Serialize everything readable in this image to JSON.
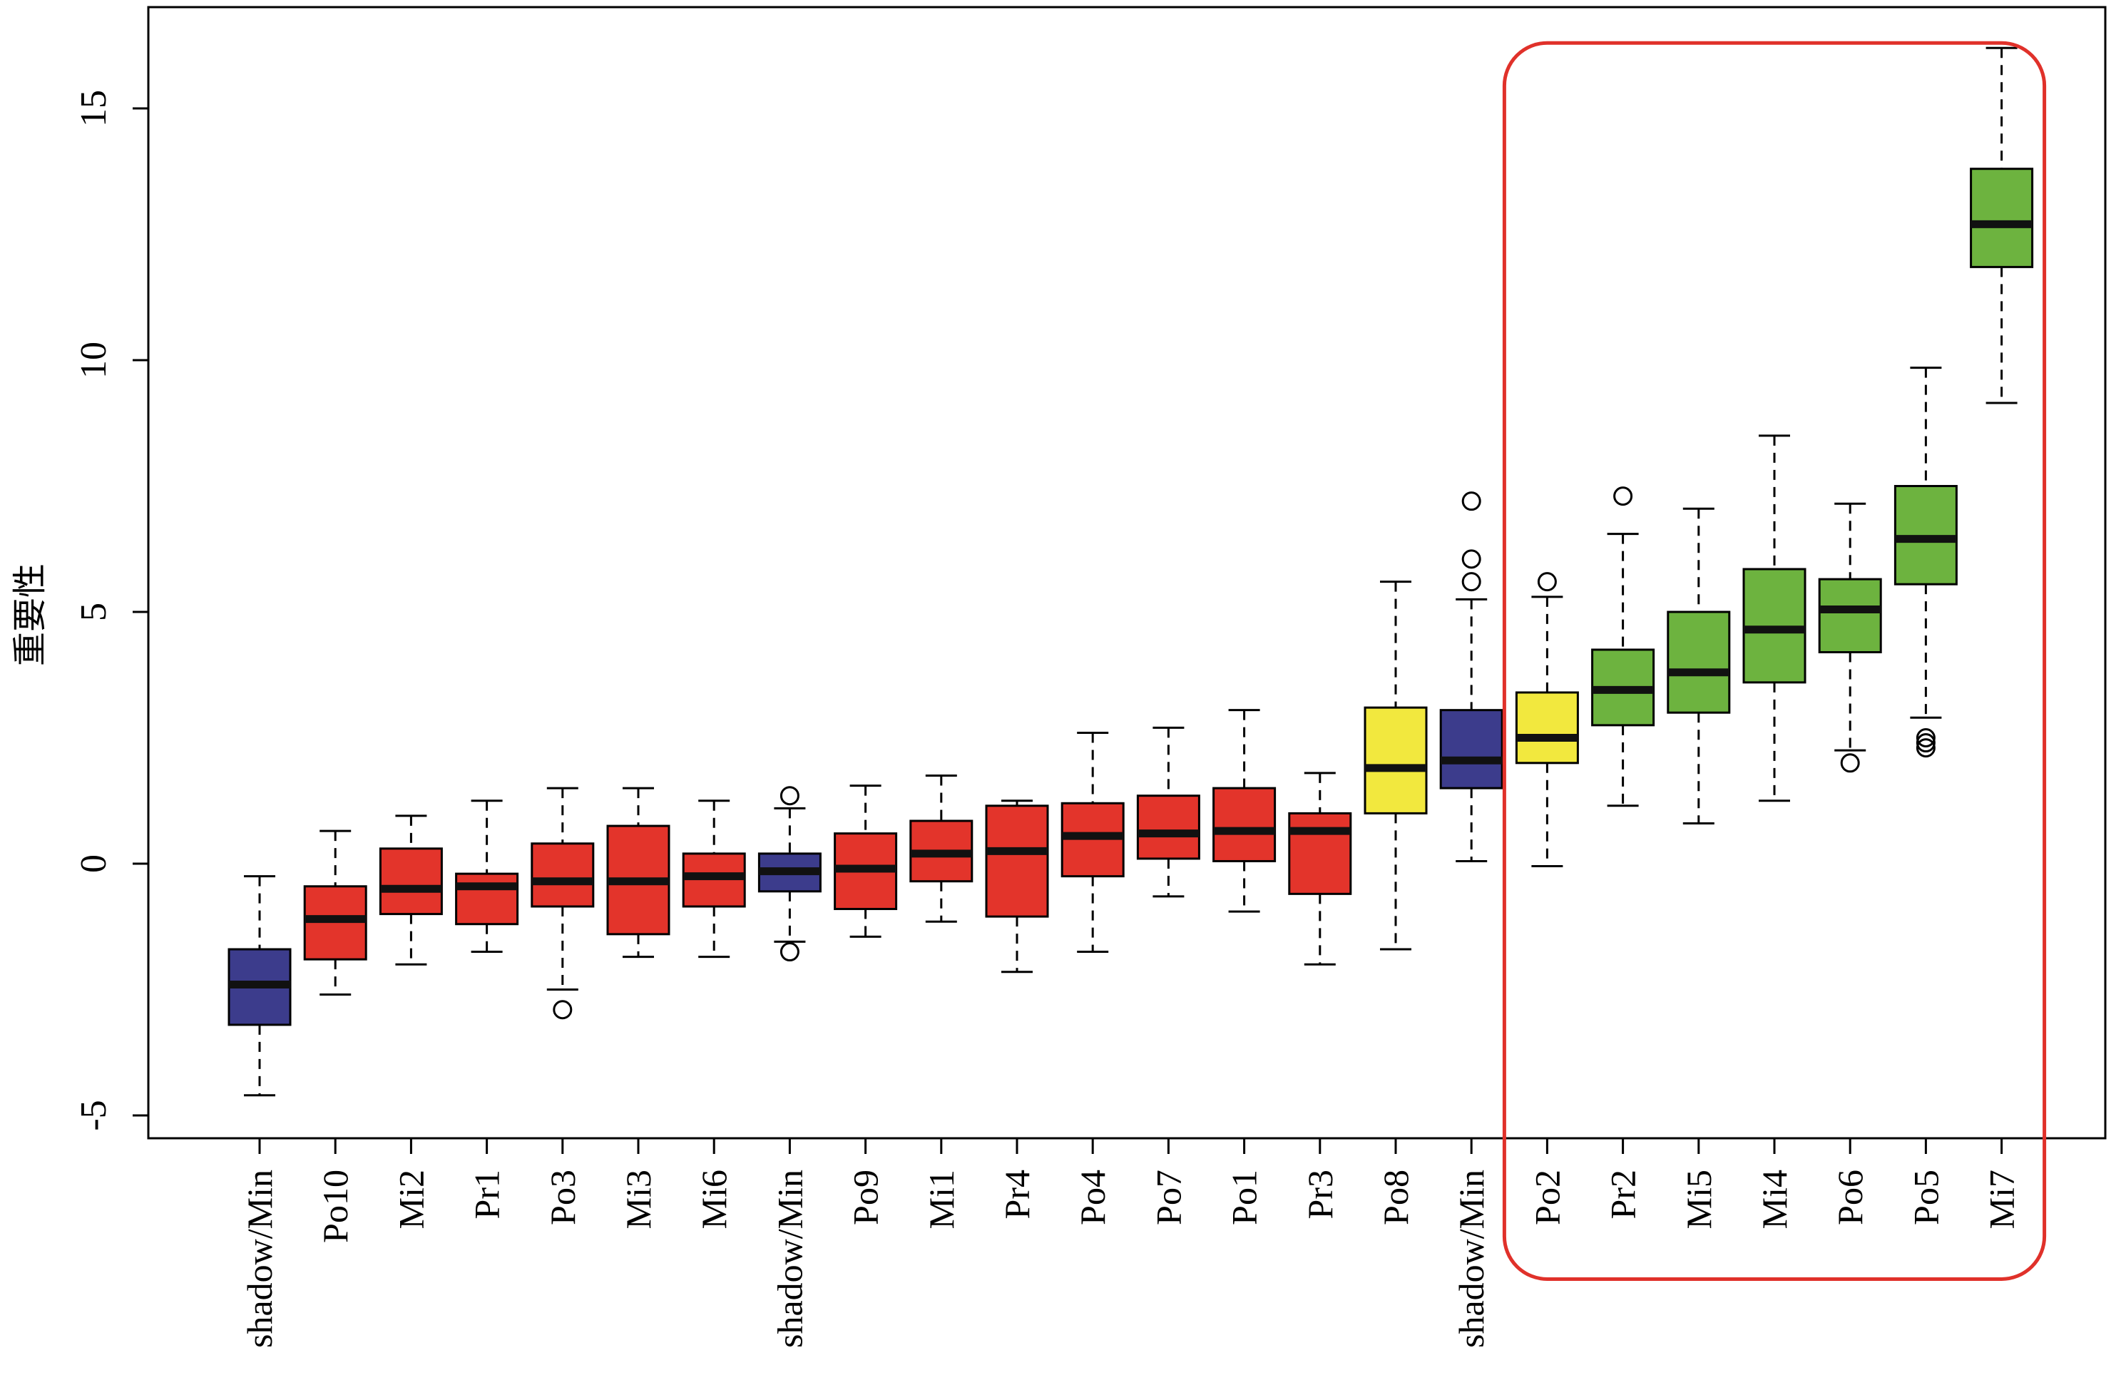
{
  "colors": {
    "shadow": "#3c3c8c",
    "rejected": "#e3342b",
    "tentative": "#f2e83e",
    "confirmed": "#6db33f",
    "highlight": "#e0312a",
    "median": "#111111",
    "axis": "#000000"
  },
  "chart_data": {
    "type": "box",
    "ylabel": "重要性",
    "ylim": [
      -5.5,
      17
    ],
    "yticks": [
      -5,
      0,
      5,
      10,
      15
    ],
    "ytick_labels": [
      "-5",
      "0",
      "5",
      "10",
      "15"
    ],
    "highlight": {
      "from": "Po2",
      "to": "Mi7",
      "ymin": -8.25,
      "ymax": 16.3
    },
    "boxes": [
      {
        "label": "shadow/Min",
        "group": "shadow",
        "min": -4.6,
        "q1": -3.2,
        "median": -2.4,
        "q3": -1.7,
        "max": -0.25,
        "outliers": []
      },
      {
        "label": "Po10",
        "group": "rejected",
        "min": -2.6,
        "q1": -1.9,
        "median": -1.1,
        "q3": -0.45,
        "max": 0.65,
        "outliers": []
      },
      {
        "label": "Mi2",
        "group": "rejected",
        "min": -2.0,
        "q1": -1.0,
        "median": -0.5,
        "q3": 0.3,
        "max": 0.95,
        "outliers": []
      },
      {
        "label": "Pr1",
        "group": "rejected",
        "min": -1.75,
        "q1": -1.2,
        "median": -0.45,
        "q3": -0.2,
        "max": 1.25,
        "outliers": []
      },
      {
        "label": "Po3",
        "group": "rejected",
        "min": -2.5,
        "q1": -0.85,
        "median": -0.35,
        "q3": 0.4,
        "max": 1.5,
        "outliers": [
          -2.9
        ]
      },
      {
        "label": "Mi3",
        "group": "rejected",
        "min": -1.85,
        "q1": -1.4,
        "median": -0.35,
        "q3": 0.75,
        "max": 1.5,
        "outliers": []
      },
      {
        "label": "Mi6",
        "group": "rejected",
        "min": -1.85,
        "q1": -0.85,
        "median": -0.25,
        "q3": 0.2,
        "max": 1.25,
        "outliers": []
      },
      {
        "label": "shadow/Min",
        "group": "shadow",
        "min": -1.55,
        "q1": -0.55,
        "median": -0.15,
        "q3": 0.2,
        "max": 1.1,
        "outliers": [
          1.35,
          -1.75
        ]
      },
      {
        "label": "Po9",
        "group": "rejected",
        "min": -1.45,
        "q1": -0.9,
        "median": -0.1,
        "q3": 0.6,
        "max": 1.55,
        "outliers": []
      },
      {
        "label": "Mi1",
        "group": "rejected",
        "min": -1.15,
        "q1": -0.35,
        "median": 0.2,
        "q3": 0.85,
        "max": 1.75,
        "outliers": []
      },
      {
        "label": "Pr4",
        "group": "rejected",
        "min": -2.15,
        "q1": -1.05,
        "median": 0.25,
        "q3": 1.15,
        "max": 1.25,
        "outliers": []
      },
      {
        "label": "Po4",
        "group": "rejected",
        "min": -1.75,
        "q1": -0.25,
        "median": 0.55,
        "q3": 1.2,
        "max": 2.6,
        "outliers": []
      },
      {
        "label": "Po7",
        "group": "rejected",
        "min": -0.65,
        "q1": 0.1,
        "median": 0.6,
        "q3": 1.35,
        "max": 2.7,
        "outliers": []
      },
      {
        "label": "Po1",
        "group": "rejected",
        "min": -0.95,
        "q1": 0.05,
        "median": 0.65,
        "q3": 1.5,
        "max": 3.05,
        "outliers": []
      },
      {
        "label": "Pr3",
        "group": "rejected",
        "min": -2.0,
        "q1": -0.6,
        "median": 0.65,
        "q3": 1.0,
        "max": 1.8,
        "outliers": []
      },
      {
        "label": "Po8",
        "group": "tentative",
        "min": -1.7,
        "q1": 1.0,
        "median": 1.9,
        "q3": 3.1,
        "max": 5.6,
        "outliers": []
      },
      {
        "label": "shadow/Min",
        "group": "shadow",
        "min": 0.05,
        "q1": 1.5,
        "median": 2.05,
        "q3": 3.05,
        "max": 5.25,
        "outliers": [
          7.2,
          6.05,
          5.6
        ]
      },
      {
        "label": "Po2",
        "group": "tentative",
        "min": -0.05,
        "q1": 2.0,
        "median": 2.5,
        "q3": 3.4,
        "max": 5.3,
        "outliers": [
          5.6
        ]
      },
      {
        "label": "Pr2",
        "group": "confirmed",
        "min": 1.15,
        "q1": 2.75,
        "median": 3.45,
        "q3": 4.25,
        "max": 6.55,
        "outliers": [
          7.3
        ]
      },
      {
        "label": "Mi5",
        "group": "confirmed",
        "min": 0.8,
        "q1": 3.0,
        "median": 3.8,
        "q3": 5.0,
        "max": 7.05,
        "outliers": []
      },
      {
        "label": "Mi4",
        "group": "confirmed",
        "min": 1.25,
        "q1": 3.6,
        "median": 4.65,
        "q3": 5.85,
        "max": 8.5,
        "outliers": []
      },
      {
        "label": "Po6",
        "group": "confirmed",
        "min": 2.25,
        "q1": 4.2,
        "median": 5.05,
        "q3": 5.65,
        "max": 7.15,
        "outliers": [
          2.0
        ]
      },
      {
        "label": "Po5",
        "group": "confirmed",
        "min": 2.9,
        "q1": 5.55,
        "median": 6.45,
        "q3": 7.5,
        "max": 9.85,
        "outliers": [
          2.5,
          2.4,
          2.3
        ]
      },
      {
        "label": "Mi7",
        "group": "confirmed",
        "min": 9.15,
        "q1": 11.85,
        "median": 12.7,
        "q3": 13.8,
        "max": 16.2,
        "outliers": []
      }
    ]
  }
}
